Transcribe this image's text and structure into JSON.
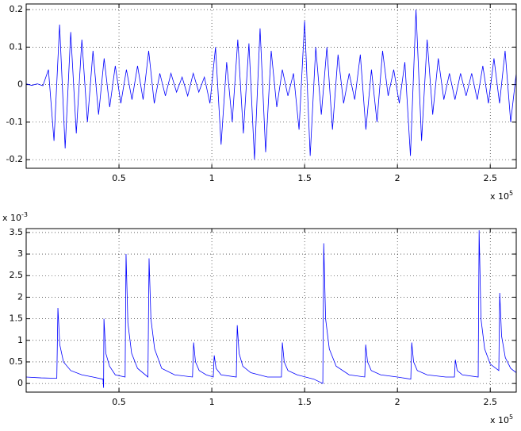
{
  "chart_data": [
    {
      "type": "line",
      "xlim": [
        0,
        264000
      ],
      "ylim": [
        -0.223,
        0.215
      ],
      "xticks": [
        {
          "value": 50000,
          "label": "0.5"
        },
        {
          "value": 100000,
          "label": "1"
        },
        {
          "value": 150000,
          "label": "1.5"
        },
        {
          "value": 200000,
          "label": "2"
        },
        {
          "value": 250000,
          "label": "2.5"
        }
      ],
      "yticks": [
        -0.2,
        -0.1,
        0,
        0.1,
        0.2
      ],
      "x_multiplier": {
        "base": "x 10",
        "exponent": "5"
      },
      "grid": true,
      "x": [
        0,
        3000,
        6000,
        9000,
        12000,
        15000,
        18000,
        21000,
        24000,
        27000,
        30000,
        33000,
        36000,
        39000,
        42000,
        45000,
        48000,
        51000,
        54000,
        57000,
        60000,
        63000,
        66000,
        69000,
        72000,
        75000,
        78000,
        81000,
        84000,
        87000,
        90000,
        93000,
        96000,
        99000,
        102000,
        105000,
        108000,
        111000,
        114000,
        117000,
        120000,
        123000,
        126000,
        129000,
        132000,
        135000,
        138000,
        141000,
        144000,
        147000,
        150000,
        153000,
        156000,
        159000,
        162000,
        165000,
        168000,
        171000,
        174000,
        177000,
        180000,
        183000,
        186000,
        189000,
        192000,
        195000,
        198000,
        201000,
        204000,
        207000,
        210000,
        213000,
        216000,
        219000,
        222000,
        225000,
        228000,
        231000,
        234000,
        237000,
        240000,
        243000,
        246000,
        249000,
        252000,
        255000,
        258000,
        261000,
        264000
      ],
      "series": [
        {
          "color": "#0000ff",
          "values": [
            0.002,
            -0.002,
            0.002,
            -0.003,
            0.04,
            -0.15,
            0.16,
            -0.17,
            0.14,
            -0.13,
            0.12,
            -0.1,
            0.09,
            -0.08,
            0.07,
            -0.06,
            0.05,
            -0.05,
            0.04,
            -0.04,
            0.05,
            -0.04,
            0.09,
            -0.05,
            0.03,
            -0.03,
            0.03,
            -0.02,
            0.02,
            -0.03,
            0.03,
            -0.02,
            0.02,
            -0.05,
            0.1,
            -0.16,
            0.06,
            -0.1,
            0.12,
            -0.13,
            0.11,
            -0.2,
            0.15,
            -0.18,
            0.09,
            -0.06,
            0.04,
            -0.03,
            0.03,
            -0.12,
            0.17,
            -0.19,
            0.1,
            -0.08,
            0.1,
            -0.12,
            0.08,
            -0.05,
            0.03,
            -0.04,
            0.08,
            -0.12,
            0.04,
            -0.1,
            0.09,
            -0.03,
            0.04,
            -0.05,
            0.06,
            -0.19,
            0.2,
            -0.15,
            0.12,
            -0.08,
            0.07,
            -0.04,
            0.03,
            -0.04,
            0.03,
            -0.03,
            0.03,
            -0.04,
            0.05,
            -0.05,
            0.07,
            -0.05,
            0.09,
            -0.1,
            0.03
          ]
        }
      ]
    },
    {
      "type": "line",
      "xlim": [
        0,
        264000
      ],
      "ylim": [
        -0.2,
        3.59
      ],
      "xticks": [
        {
          "value": 50000,
          "label": "0.5"
        },
        {
          "value": 100000,
          "label": "1"
        },
        {
          "value": 150000,
          "label": "1.5"
        },
        {
          "value": 200000,
          "label": "2"
        },
        {
          "value": 250000,
          "label": "2.5"
        }
      ],
      "yticks": [
        0,
        0.5,
        1,
        1.5,
        2,
        2.5,
        3,
        3.5
      ],
      "x_multiplier": {
        "base": "x 10",
        "exponent": "5"
      },
      "y_multiplier": {
        "base": "x 10",
        "exponent": "-3"
      },
      "grid": true,
      "x": [
        0,
        8000,
        16500,
        17100,
        18100,
        20100,
        24000,
        30000,
        36000,
        41400,
        41700,
        41900,
        42900,
        44900,
        48000,
        53300,
        53800,
        54800,
        56800,
        60000,
        65600,
        66200,
        67200,
        69200,
        73000,
        80000,
        89600,
        90200,
        91200,
        93200,
        97000,
        100800,
        101300,
        102300,
        105000,
        113200,
        113700,
        114700,
        116700,
        121000,
        130000,
        137500,
        138000,
        139000,
        141000,
        146000,
        155000,
        159800,
        160300,
        161300,
        163300,
        167000,
        174000,
        182400,
        182900,
        183900,
        185900,
        191000,
        200000,
        207200,
        207700,
        208700,
        210700,
        216000,
        226000,
        230700,
        231200,
        232200,
        235000,
        243500,
        244000,
        245000,
        247000,
        250000,
        254600,
        255100,
        256100,
        258100,
        261000,
        264000
      ],
      "series": [
        {
          "color": "#0000ff",
          "values": [
            0.15,
            0.13,
            0.12,
            1.75,
            0.9,
            0.5,
            0.3,
            0.2,
            0.15,
            0.1,
            -0.1,
            1.5,
            0.7,
            0.4,
            0.2,
            0.15,
            3.0,
            1.4,
            0.7,
            0.35,
            0.15,
            2.9,
            1.5,
            0.8,
            0.35,
            0.2,
            0.15,
            0.95,
            0.5,
            0.3,
            0.2,
            0.15,
            0.65,
            0.35,
            0.2,
            0.15,
            1.35,
            0.7,
            0.4,
            0.25,
            0.15,
            0.15,
            0.95,
            0.5,
            0.3,
            0.2,
            0.1,
            0.0,
            3.25,
            1.5,
            0.8,
            0.4,
            0.2,
            0.15,
            0.9,
            0.5,
            0.3,
            0.2,
            0.15,
            0.1,
            0.95,
            0.5,
            0.3,
            0.2,
            0.15,
            0.15,
            0.55,
            0.3,
            0.2,
            0.15,
            3.55,
            1.5,
            0.8,
            0.45,
            0.3,
            2.1,
            1.1,
            0.6,
            0.35,
            0.25
          ]
        }
      ]
    }
  ]
}
